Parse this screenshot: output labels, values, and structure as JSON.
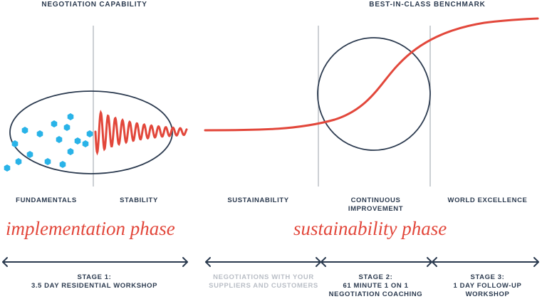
{
  "headers": {
    "left": "NEGOTIATION CAPABILITY",
    "right": "BEST-IN-CLASS BENCHMARK"
  },
  "columns": {
    "fundamentals": "FUNDAMENTALS",
    "stability": "STABILITY",
    "sustainability": "SUSTAINABILITY",
    "continuous_line1": "CONTINUOUS",
    "continuous_line2": "IMPROVEMENT",
    "world_excellence": "WORLD EXCELLENCE"
  },
  "phases": {
    "implementation": "implementation phase",
    "sustainability": "sustainability phase"
  },
  "stages": {
    "stage1_line1": "STAGE 1:",
    "stage1_line2": "3.5 DAY RESIDENTIAL WORKSHOP",
    "negotiations_line1": "NEGOTIATIONS WITH YOUR",
    "negotiations_line2": "SUPPLIERS AND CUSTOMERS",
    "stage2_line1": "STAGE 2:",
    "stage2_line2": "61 MINUTE 1 ON 1",
    "stage2_line3": "NEGOTIATION COACHING",
    "stage3_line1": "STAGE 3:",
    "stage3_line2": "1 DAY FOLLOW-UP",
    "stage3_line3": "WORKSHOP"
  },
  "colors": {
    "navy": "#2b3a4f",
    "red": "#e2473b",
    "blue": "#29b3e8",
    "gray_line": "#9aa0a8",
    "muted_text": "#b9bec6"
  }
}
